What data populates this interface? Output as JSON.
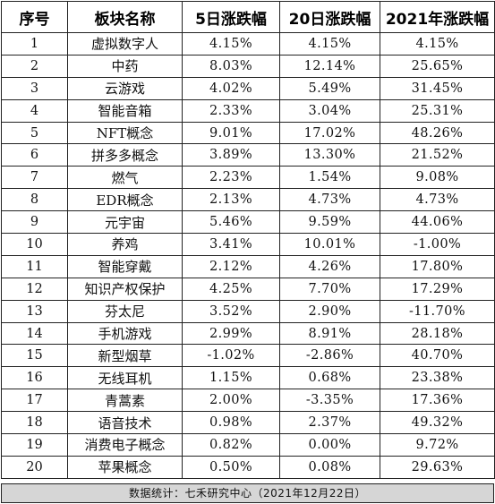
{
  "table": {
    "headers": [
      "序号",
      "板块名称",
      "5日涨跌幅",
      "20日涨跌幅",
      "2021年涨跌幅"
    ],
    "rows": [
      [
        "1",
        "虚拟数字人",
        "4.15%",
        "4.15%",
        "4.15%"
      ],
      [
        "2",
        "中药",
        "8.03%",
        "12.14%",
        "25.65%"
      ],
      [
        "3",
        "云游戏",
        "4.02%",
        "5.49%",
        "31.45%"
      ],
      [
        "4",
        "智能音箱",
        "2.33%",
        "3.04%",
        "25.31%"
      ],
      [
        "5",
        "NFT概念",
        "9.01%",
        "17.02%",
        "48.26%"
      ],
      [
        "6",
        "拼多多概念",
        "3.89%",
        "13.30%",
        "21.52%"
      ],
      [
        "7",
        "燃气",
        "2.23%",
        "1.54%",
        "9.08%"
      ],
      [
        "8",
        "EDR概念",
        "2.13%",
        "4.73%",
        "4.73%"
      ],
      [
        "9",
        "元宇宙",
        "5.46%",
        "9.59%",
        "44.06%"
      ],
      [
        "10",
        "养鸡",
        "3.41%",
        "10.01%",
        "-1.00%"
      ],
      [
        "11",
        "智能穿戴",
        "2.12%",
        "4.26%",
        "17.80%"
      ],
      [
        "12",
        "知识产权保护",
        "4.25%",
        "7.70%",
        "17.29%"
      ],
      [
        "13",
        "芬太尼",
        "3.52%",
        "2.90%",
        "-11.70%"
      ],
      [
        "14",
        "手机游戏",
        "2.99%",
        "8.91%",
        "28.18%"
      ],
      [
        "15",
        "新型烟草",
        "-1.02%",
        "-2.86%",
        "40.70%"
      ],
      [
        "16",
        "无线耳机",
        "1.15%",
        "0.68%",
        "23.38%"
      ],
      [
        "17",
        "青蒿素",
        "2.00%",
        "-3.35%",
        "17.36%"
      ],
      [
        "18",
        "语音技术",
        "0.98%",
        "2.37%",
        "49.32%"
      ],
      [
        "19",
        "消费电子概念",
        "0.82%",
        "0.00%",
        "9.72%"
      ],
      [
        "20",
        "苹果概念",
        "0.50%",
        "0.08%",
        "29.63%"
      ]
    ]
  },
  "footer": {
    "text": "数据统计：七禾研究中心（2021年12月22日）"
  }
}
